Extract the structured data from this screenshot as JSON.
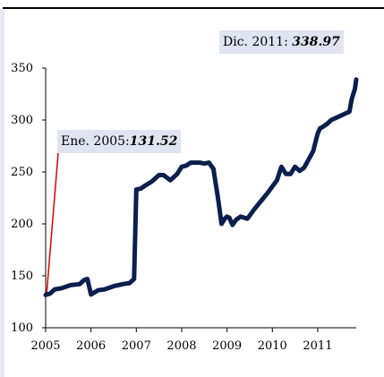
{
  "chart_data": {
    "type": "line",
    "title": "",
    "xlabel": "",
    "ylabel": "",
    "ylim": [
      100,
      350
    ],
    "xlim": [
      2005.0,
      2011.85
    ],
    "yticks": [
      100,
      150,
      200,
      250,
      300,
      350
    ],
    "xticks": [
      2005,
      2006,
      2007,
      2008,
      2009,
      2010,
      2011
    ],
    "grid": false,
    "legend": "none",
    "series": [
      {
        "name": "",
        "color": "#0b1f4e",
        "x": [
          2005.0,
          2005.1,
          2005.2,
          2005.35,
          2005.55,
          2005.75,
          2005.85,
          2005.92,
          2006.0,
          2006.15,
          2006.3,
          2006.5,
          2006.7,
          2006.85,
          2006.95,
          2007.0,
          2007.1,
          2007.2,
          2007.35,
          2007.5,
          2007.6,
          2007.75,
          2007.9,
          2008.0,
          2008.1,
          2008.2,
          2008.3,
          2008.4,
          2008.5,
          2008.6,
          2008.7,
          2008.8,
          2008.88,
          2008.95,
          2009.0,
          2009.05,
          2009.12,
          2009.2,
          2009.3,
          2009.45,
          2009.6,
          2009.75,
          2009.9,
          2010.0,
          2010.1,
          2010.2,
          2010.3,
          2010.4,
          2010.5,
          2010.6,
          2010.7,
          2010.8,
          2010.9,
          2011.0,
          2011.05,
          2011.1,
          2011.2,
          2011.3,
          2011.4,
          2011.5,
          2011.6,
          2011.7,
          2011.75,
          2011.82,
          2011.85
        ],
        "y": [
          131.52,
          133,
          137,
          138,
          141,
          142,
          146,
          147,
          132,
          136,
          137,
          140,
          142,
          143,
          147,
          233,
          234,
          237,
          241,
          247,
          247,
          242,
          248,
          255,
          256,
          259,
          259,
          259,
          258,
          259,
          253,
          225,
          200,
          205,
          207,
          206,
          199,
          204,
          207,
          205,
          214,
          222,
          230,
          236,
          242,
          255,
          248,
          248,
          255,
          251,
          254,
          262,
          270,
          287,
          292,
          293,
          296,
          300,
          302,
          304,
          306,
          308,
          320,
          330,
          338.97
        ]
      }
    ],
    "annotations": [
      {
        "label": "Ene. 2005:",
        "value": "131.52",
        "x": 2005.0,
        "y": 131.52,
        "leader_color": "#e00000"
      },
      {
        "label": "Dic. 2011: ",
        "value": "338.97",
        "x": 2011.85,
        "y": 338.97
      }
    ]
  }
}
